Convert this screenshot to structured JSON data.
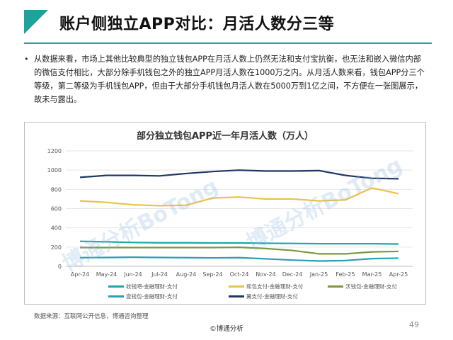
{
  "slide": {
    "title": "账户侧独立APP对比：月活人数分三等",
    "bullet": "从数据来看，市场上其他比较典型的独立钱包APP在月活人数上仍然无法和支付宝抗衡，也无法和嵌入微信内部的微信支付相比，大部分除手机钱包之外的独立APP月活人数在1000万之内。从月活人数来看，钱包APP分三个等级，第二等级为手机钱包APP，但由于大部分手机钱包月活人数在5000万到1亿之间，不方便在一张图展示，故未与露出。",
    "source": "数据来源：互联网公开信息，博通咨询整理",
    "footer": "©博通分析",
    "page_number": "49",
    "watermark": "博通分析BoTong"
  },
  "chart_data": {
    "type": "line",
    "title": "部分独立钱包APP近一年月活人数（万人）",
    "xlabel": "",
    "ylabel": "",
    "categories": [
      "Apr-24",
      "May-24",
      "Jun-24",
      "Jul-24",
      "Aug-24",
      "Sep-24",
      "Oct-24",
      "Nov-24",
      "Dec-24",
      "Jan-25",
      "Feb-25",
      "Mar-25",
      "Apr-25"
    ],
    "ylim": [
      0,
      1200
    ],
    "yticks": [
      0,
      200,
      400,
      600,
      800,
      1000,
      1200
    ],
    "grid": true,
    "legend_position": "bottom",
    "series": [
      {
        "name": "收钱吧-金融理财-支付",
        "color": "#1aa8a8",
        "values": [
          260,
          255,
          248,
          245,
          245,
          243,
          243,
          240,
          238,
          235,
          235,
          235,
          232
        ]
      },
      {
        "name": "和包支付-金融理财-支付",
        "color": "#e9c24a",
        "values": [
          680,
          665,
          640,
          630,
          635,
          710,
          720,
          700,
          700,
          680,
          690,
          815,
          755
        ]
      },
      {
        "name": "沃钱包-金融理财-支付",
        "color": "#7a9a3a",
        "values": [
          195,
          195,
          195,
          195,
          195,
          195,
          198,
          185,
          165,
          130,
          130,
          150,
          155
        ]
      },
      {
        "name": "壹钱包-金融理财-支付",
        "color": "#2a9fb5",
        "values": [
          90,
          92,
          95,
          92,
          90,
          88,
          90,
          78,
          65,
          55,
          60,
          80,
          85
        ]
      },
      {
        "name": "翼支付-金融理财-支付",
        "color": "#1f3864",
        "values": [
          925,
          945,
          945,
          940,
          965,
          985,
          1000,
          990,
          990,
          995,
          945,
          915,
          910
        ]
      }
    ]
  }
}
